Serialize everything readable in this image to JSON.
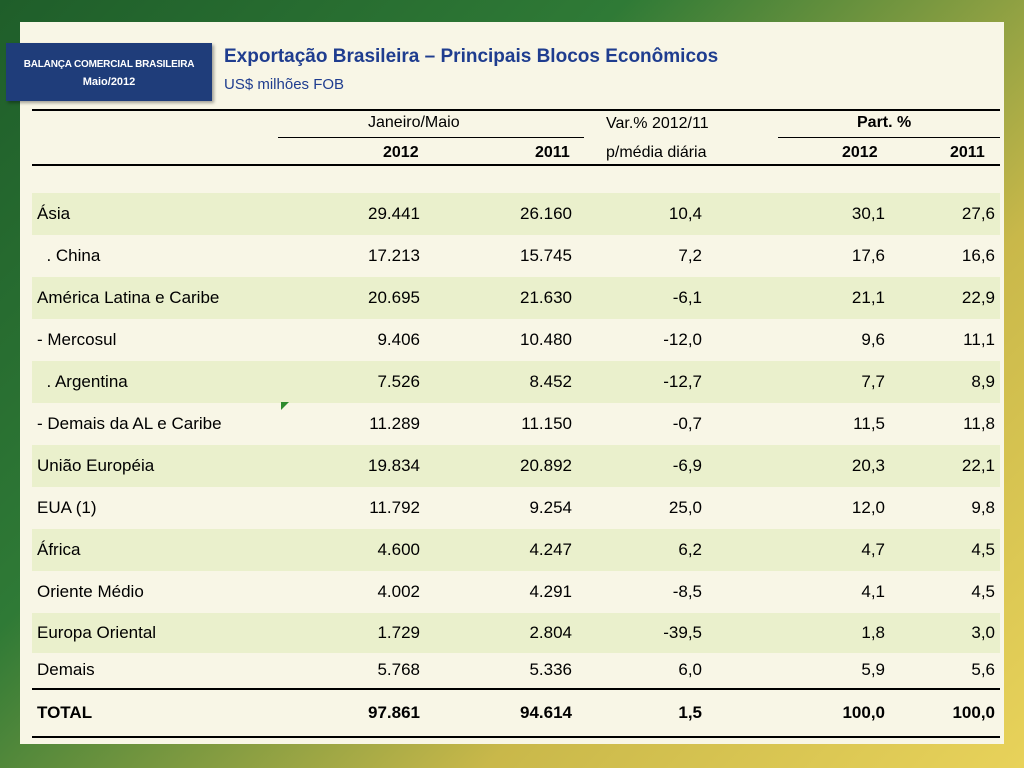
{
  "badge": {
    "line1": "BALANÇA COMERCIAL BRASILEIRA",
    "line2": "Maio/2012"
  },
  "title": "Exportação Brasileira – Principais Blocos Econômicos",
  "subtitle": "US$ milhões FOB",
  "header": {
    "period": "Janeiro/Maio",
    "var_line1": "Var.% 2012/11",
    "var_line2": "p/média diária",
    "part": "Part. %",
    "y2012": "2012",
    "y2011": "2011",
    "p2012": "2012",
    "p2011": "2011"
  },
  "rows": [
    {
      "label": "Ásia",
      "v2012": "29.441",
      "v2011": "26.160",
      "var": "10,4",
      "p2012": "30,1",
      "p2011": "27,6"
    },
    {
      "label": "  . China",
      "v2012": "17.213",
      "v2011": "15.745",
      "var": "7,2",
      "p2012": "17,6",
      "p2011": "16,6"
    },
    {
      "label": "América Latina e Caribe",
      "v2012": "20.695",
      "v2011": "21.630",
      "var": "-6,1",
      "p2012": "21,1",
      "p2011": "22,9"
    },
    {
      "label": "- Mercosul",
      "v2012": "9.406",
      "v2011": "10.480",
      "var": "-12,0",
      "p2012": "9,6",
      "p2011": "11,1"
    },
    {
      "label": "  . Argentina",
      "v2012": "7.526",
      "v2011": "8.452",
      "var": "-12,7",
      "p2012": "7,7",
      "p2011": "8,9"
    },
    {
      "label": "- Demais da AL e Caribe",
      "v2012": "11.289",
      "v2011": "11.150",
      "var": "-0,7",
      "p2012": "11,5",
      "p2011": "11,8"
    },
    {
      "label": "União Européia",
      "v2012": "19.834",
      "v2011": "20.892",
      "var": "-6,9",
      "p2012": "20,3",
      "p2011": "22,1"
    },
    {
      "label": "EUA (1)",
      "v2012": "11.792",
      "v2011": "9.254",
      "var": "25,0",
      "p2012": "12,0",
      "p2011": "9,8"
    },
    {
      "label": "África",
      "v2012": "4.600",
      "v2011": "4.247",
      "var": "6,2",
      "p2012": "4,7",
      "p2011": "4,5"
    },
    {
      "label": "Oriente Médio",
      "v2012": "4.002",
      "v2011": "4.291",
      "var": "-8,5",
      "p2012": "4,1",
      "p2011": "4,5"
    },
    {
      "label": "Europa Oriental",
      "v2012": "1.729",
      "v2011": "2.804",
      "var": "-39,5",
      "p2012": "1,8",
      "p2011": "3,0"
    },
    {
      "label": "Demais",
      "v2012": "5.768",
      "v2011": "5.336",
      "var": "6,0",
      "p2012": "5,9",
      "p2011": "5,6"
    }
  ],
  "total": {
    "label": "TOTAL",
    "v2012": "97.861",
    "v2011": "94.614",
    "var": "1,5",
    "p2012": "100,0",
    "p2011": "100,0"
  }
}
